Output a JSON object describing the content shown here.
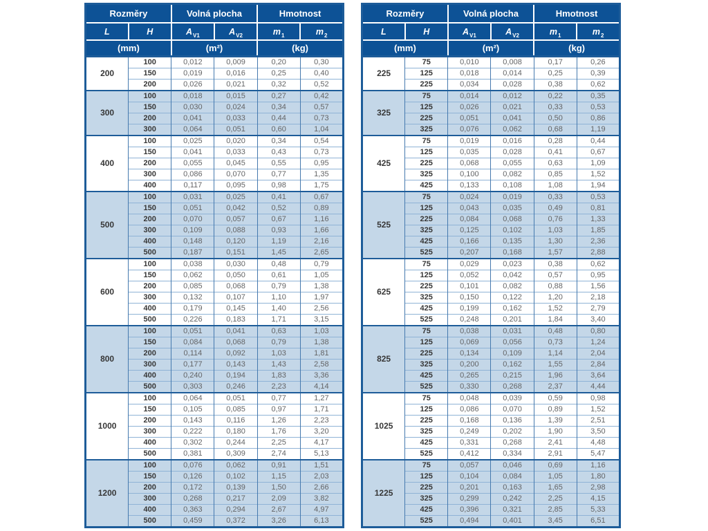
{
  "colors": {
    "page_bg": "#ffffff",
    "header_bg": "#0d5296",
    "header_text": "#ffffff",
    "row_bg": "#ffffff",
    "row_alt_bg": "#c4d7e8",
    "border_outer": "#1d5c99",
    "border_vert": "#4579ae",
    "border_horiz": "#8fb3d6",
    "dim_text": "#373737",
    "value_text": "#636466"
  },
  "header": {
    "dim_group": "Rozměry",
    "area_group": "Volná plocha",
    "mass_group": "Hmotnost",
    "col_L": "L",
    "col_H": "H",
    "sym_A": "A",
    "sub_V1": "V1",
    "sub_V2": "V2",
    "sym_m": "m",
    "sub_1": "1",
    "sub_2": "2",
    "unit_mm": "(mm)",
    "unit_m2": "(m²)",
    "unit_kg": "(kg)"
  },
  "tables": [
    {
      "name": "left",
      "groups": [
        {
          "L": "200",
          "rows": [
            [
              "100",
              "0,012",
              "0,009",
              "0,20",
              "0,30"
            ],
            [
              "150",
              "0,019",
              "0,016",
              "0,25",
              "0,40"
            ],
            [
              "200",
              "0,026",
              "0,021",
              "0,32",
              "0,52"
            ]
          ]
        },
        {
          "L": "300",
          "rows": [
            [
              "100",
              "0,018",
              "0,015",
              "0,27",
              "0,42"
            ],
            [
              "150",
              "0,030",
              "0,024",
              "0,34",
              "0,57"
            ],
            [
              "200",
              "0,041",
              "0,033",
              "0,44",
              "0,73"
            ],
            [
              "300",
              "0,064",
              "0,051",
              "0,60",
              "1,04"
            ]
          ]
        },
        {
          "L": "400",
          "rows": [
            [
              "100",
              "0,025",
              "0,020",
              "0,34",
              "0,54"
            ],
            [
              "150",
              "0,041",
              "0,033",
              "0,43",
              "0,73"
            ],
            [
              "200",
              "0,055",
              "0,045",
              "0,55",
              "0,95"
            ],
            [
              "300",
              "0,086",
              "0,070",
              "0,77",
              "1,35"
            ],
            [
              "400",
              "0,117",
              "0,095",
              "0,98",
              "1,75"
            ]
          ]
        },
        {
          "L": "500",
          "rows": [
            [
              "100",
              "0,031",
              "0,025",
              "0,41",
              "0,67"
            ],
            [
              "150",
              "0,051",
              "0,042",
              "0,52",
              "0,89"
            ],
            [
              "200",
              "0,070",
              "0,057",
              "0,67",
              "1,16"
            ],
            [
              "300",
              "0,109",
              "0,088",
              "0,93",
              "1,66"
            ],
            [
              "400",
              "0,148",
              "0,120",
              "1,19",
              "2,16"
            ],
            [
              "500",
              "0,187",
              "0,151",
              "1,45",
              "2,65"
            ]
          ]
        },
        {
          "L": "600",
          "rows": [
            [
              "100",
              "0,038",
              "0,030",
              "0,48",
              "0,79"
            ],
            [
              "150",
              "0,062",
              "0,050",
              "0,61",
              "1,05"
            ],
            [
              "200",
              "0,085",
              "0,068",
              "0,79",
              "1,38"
            ],
            [
              "300",
              "0,132",
              "0,107",
              "1,10",
              "1,97"
            ],
            [
              "400",
              "0,179",
              "0,145",
              "1,40",
              "2,56"
            ],
            [
              "500",
              "0,226",
              "0,183",
              "1,71",
              "3,15"
            ]
          ]
        },
        {
          "L": "800",
          "rows": [
            [
              "100",
              "0,051",
              "0,041",
              "0,63",
              "1,03"
            ],
            [
              "150",
              "0,084",
              "0,068",
              "0,79",
              "1,38"
            ],
            [
              "200",
              "0,114",
              "0,092",
              "1,03",
              "1,81"
            ],
            [
              "300",
              "0,177",
              "0,143",
              "1,43",
              "2,58"
            ],
            [
              "400",
              "0,240",
              "0,194",
              "1,83",
              "3,36"
            ],
            [
              "500",
              "0,303",
              "0,246",
              "2,23",
              "4,14"
            ]
          ]
        },
        {
          "L": "1000",
          "rows": [
            [
              "100",
              "0,064",
              "0,051",
              "0,77",
              "1,27"
            ],
            [
              "150",
              "0,105",
              "0,085",
              "0,97",
              "1,71"
            ],
            [
              "200",
              "0,143",
              "0,116",
              "1,26",
              "2,23"
            ],
            [
              "300",
              "0,222",
              "0,180",
              "1,76",
              "3,20"
            ],
            [
              "400",
              "0,302",
              "0,244",
              "2,25",
              "4,17"
            ],
            [
              "500",
              "0,381",
              "0,309",
              "2,74",
              "5,13"
            ]
          ]
        },
        {
          "L": "1200",
          "rows": [
            [
              "100",
              "0,076",
              "0,062",
              "0,91",
              "1,51"
            ],
            [
              "150",
              "0,126",
              "0,102",
              "1,15",
              "2,03"
            ],
            [
              "200",
              "0,172",
              "0,139",
              "1,50",
              "2,66"
            ],
            [
              "300",
              "0,268",
              "0,217",
              "2,09",
              "3,82"
            ],
            [
              "400",
              "0,363",
              "0,294",
              "2,67",
              "4,97"
            ],
            [
              "500",
              "0,459",
              "0,372",
              "3,26",
              "6,13"
            ]
          ]
        }
      ]
    },
    {
      "name": "right",
      "groups": [
        {
          "L": "225",
          "rows": [
            [
              "75",
              "0,010",
              "0,008",
              "0,17",
              "0,26"
            ],
            [
              "125",
              "0,018",
              "0,014",
              "0,25",
              "0,39"
            ],
            [
              "225",
              "0,034",
              "0,028",
              "0,38",
              "0,62"
            ]
          ]
        },
        {
          "L": "325",
          "rows": [
            [
              "75",
              "0,014",
              "0,012",
              "0,22",
              "0,35"
            ],
            [
              "125",
              "0,026",
              "0,021",
              "0,33",
              "0,53"
            ],
            [
              "225",
              "0,051",
              "0,041",
              "0,50",
              "0,86"
            ],
            [
              "325",
              "0,076",
              "0,062",
              "0,68",
              "1,19"
            ]
          ]
        },
        {
          "L": "425",
          "rows": [
            [
              "75",
              "0,019",
              "0,016",
              "0,28",
              "0,44"
            ],
            [
              "125",
              "0,035",
              "0,028",
              "0,41",
              "0,67"
            ],
            [
              "225",
              "0,068",
              "0,055",
              "0,63",
              "1,09"
            ],
            [
              "325",
              "0,100",
              "0,082",
              "0,85",
              "1,52"
            ],
            [
              "425",
              "0,133",
              "0,108",
              "1,08",
              "1,94"
            ]
          ]
        },
        {
          "L": "525",
          "rows": [
            [
              "75",
              "0,024",
              "0,019",
              "0,33",
              "0,53"
            ],
            [
              "125",
              "0,043",
              "0,035",
              "0,49",
              "0,81"
            ],
            [
              "225",
              "0,084",
              "0,068",
              "0,76",
              "1,33"
            ],
            [
              "325",
              "0,125",
              "0,102",
              "1,03",
              "1,85"
            ],
            [
              "425",
              "0,166",
              "0,135",
              "1,30",
              "2,36"
            ],
            [
              "525",
              "0,207",
              "0,168",
              "1,57",
              "2,88"
            ]
          ]
        },
        {
          "L": "625",
          "rows": [
            [
              "75",
              "0,029",
              "0,023",
              "0,38",
              "0,62"
            ],
            [
              "125",
              "0,052",
              "0,042",
              "0,57",
              "0,95"
            ],
            [
              "225",
              "0,101",
              "0,082",
              "0,88",
              "1,56"
            ],
            [
              "325",
              "0,150",
              "0,122",
              "1,20",
              "2,18"
            ],
            [
              "425",
              "0,199",
              "0,162",
              "1,52",
              "2,79"
            ],
            [
              "525",
              "0,248",
              "0,201",
              "1,84",
              "3,40"
            ]
          ]
        },
        {
          "L": "825",
          "rows": [
            [
              "75",
              "0,038",
              "0,031",
              "0,48",
              "0,80"
            ],
            [
              "125",
              "0,069",
              "0,056",
              "0,73",
              "1,24"
            ],
            [
              "225",
              "0,134",
              "0,109",
              "1,14",
              "2,04"
            ],
            [
              "325",
              "0,200",
              "0,162",
              "1,55",
              "2,84"
            ],
            [
              "425",
              "0,265",
              "0,215",
              "1,96",
              "3,64"
            ],
            [
              "525",
              "0,330",
              "0,268",
              "2,37",
              "4,44"
            ]
          ]
        },
        {
          "L": "1025",
          "rows": [
            [
              "75",
              "0,048",
              "0,039",
              "0,59",
              "0,98"
            ],
            [
              "125",
              "0,086",
              "0,070",
              "0,89",
              "1,52"
            ],
            [
              "225",
              "0,168",
              "0,136",
              "1,39",
              "2,51"
            ],
            [
              "325",
              "0,249",
              "0,202",
              "1,90",
              "3,50"
            ],
            [
              "425",
              "0,331",
              "0,268",
              "2,41",
              "4,48"
            ],
            [
              "525",
              "0,412",
              "0,334",
              "2,91",
              "5,47"
            ]
          ]
        },
        {
          "L": "1225",
          "rows": [
            [
              "75",
              "0,057",
              "0,046",
              "0,69",
              "1,16"
            ],
            [
              "125",
              "0,104",
              "0,084",
              "1,05",
              "1,80"
            ],
            [
              "225",
              "0,201",
              "0,163",
              "1,65",
              "2,98"
            ],
            [
              "325",
              "0,299",
              "0,242",
              "2,25",
              "4,15"
            ],
            [
              "425",
              "0,396",
              "0,321",
              "2,85",
              "5,33"
            ],
            [
              "525",
              "0,494",
              "0,401",
              "3,45",
              "6,51"
            ]
          ]
        }
      ]
    }
  ]
}
